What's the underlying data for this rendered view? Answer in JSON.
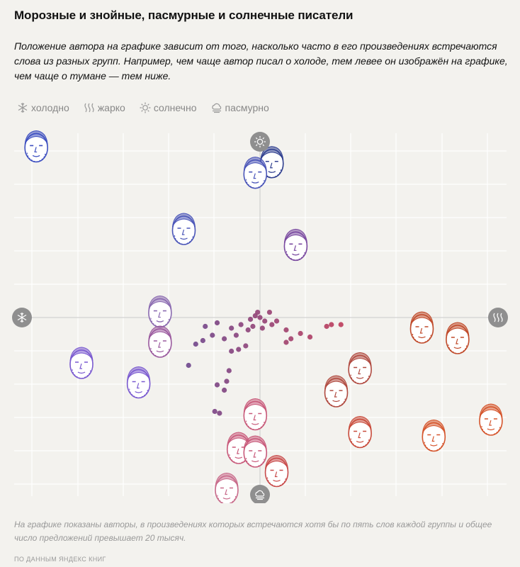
{
  "header": {
    "title": "Морозные и знойные, пасмурные и солнечные писатели",
    "subtitle": "Положение автора на графике зависит от того, насколько часто в его произведениях встречаются слова из разных групп. Например, чем чаще автор писал о холоде, тем левее он изображён на графике, чем чаще о тумане — тем ниже."
  },
  "legend": [
    {
      "label": "холодно",
      "icon": "snowflake-icon"
    },
    {
      "label": "жарко",
      "icon": "heat-waves-icon"
    },
    {
      "label": "солнечно",
      "icon": "sun-icon"
    },
    {
      "label": "пасмурно",
      "icon": "cloud-icon"
    }
  ],
  "footer": {
    "note": "На графике показаны авторы, в произведениях которых встречаются хотя бы по пять слов каждой группы и общее число предложений превышает 20 тысяч.",
    "source": "ПО ДАННЫМ ЯНДЕКС КНИГ"
  },
  "colors": {
    "cold": "#4a5ec4",
    "warm": "#d5552c",
    "mid": "#8a4a9a",
    "grid": "#ffffff",
    "axis_badge": "#8f8f8f"
  },
  "chart_data": {
    "type": "scatter",
    "title": "Морозные и знойные, пасмурные и солнечные писатели",
    "x_axis": {
      "negative": "холодно",
      "positive": "жарко",
      "range": [
        -1,
        1
      ]
    },
    "y_axis": {
      "negative": "пасмурно",
      "positive": "солнечно",
      "range": [
        -1,
        1
      ]
    },
    "grid": true,
    "authors": [
      {
        "x": -0.94,
        "y": 0.97,
        "color": "#3d4fc0"
      },
      {
        "x": 0.05,
        "y": 0.88,
        "color": "#2f3f8f"
      },
      {
        "x": -0.02,
        "y": 0.82,
        "color": "#4a55b8"
      },
      {
        "x": -0.32,
        "y": 0.5,
        "color": "#4a55b8"
      },
      {
        "x": 0.15,
        "y": 0.41,
        "color": "#7a4aa0"
      },
      {
        "x": -0.42,
        "y": 0.03,
        "color": "#8a6ab0"
      },
      {
        "x": -0.42,
        "y": -0.14,
        "color": "#9a5a9e"
      },
      {
        "x": -0.75,
        "y": -0.26,
        "color": "#7a5ad0"
      },
      {
        "x": -0.51,
        "y": -0.37,
        "color": "#7a5ad0"
      },
      {
        "x": 0.68,
        "y": -0.06,
        "color": "#c04a2a"
      },
      {
        "x": 0.83,
        "y": -0.12,
        "color": "#c04a2a"
      },
      {
        "x": 0.42,
        "y": -0.29,
        "color": "#b04a40"
      },
      {
        "x": 0.32,
        "y": -0.42,
        "color": "#b04a40"
      },
      {
        "x": 0.97,
        "y": -0.58,
        "color": "#d5552c"
      },
      {
        "x": 0.73,
        "y": -0.67,
        "color": "#d5552c"
      },
      {
        "x": 0.42,
        "y": -0.65,
        "color": "#c84a3a"
      },
      {
        "x": -0.02,
        "y": -0.55,
        "color": "#c85a7a"
      },
      {
        "x": -0.09,
        "y": -0.74,
        "color": "#c85a7a"
      },
      {
        "x": -0.02,
        "y": -0.76,
        "color": "#c85a7a"
      },
      {
        "x": 0.07,
        "y": -0.87,
        "color": "#c84a4a"
      },
      {
        "x": -0.14,
        "y": -0.97,
        "color": "#c86a8a"
      }
    ],
    "points": [
      {
        "x": -0.02,
        "y": 0.01
      },
      {
        "x": 0.0,
        "y": 0.0
      },
      {
        "x": -0.04,
        "y": -0.01
      },
      {
        "x": 0.02,
        "y": -0.02
      },
      {
        "x": -0.03,
        "y": -0.05
      },
      {
        "x": 0.01,
        "y": -0.06
      },
      {
        "x": -0.05,
        "y": -0.07
      },
      {
        "x": -0.08,
        "y": -0.04
      },
      {
        "x": -0.12,
        "y": -0.06
      },
      {
        "x": 0.04,
        "y": 0.03
      },
      {
        "x": -0.01,
        "y": 0.03
      },
      {
        "x": 0.05,
        "y": -0.04
      },
      {
        "x": 0.11,
        "y": -0.07
      },
      {
        "x": 0.17,
        "y": -0.09
      },
      {
        "x": 0.13,
        "y": -0.12
      },
      {
        "x": 0.21,
        "y": -0.11
      },
      {
        "x": 0.28,
        "y": -0.05
      },
      {
        "x": 0.3,
        "y": -0.04
      },
      {
        "x": 0.34,
        "y": -0.04
      },
      {
        "x": 0.11,
        "y": -0.14
      },
      {
        "x": -0.18,
        "y": -0.03
      },
      {
        "x": -0.23,
        "y": -0.05
      },
      {
        "x": -0.2,
        "y": -0.1
      },
      {
        "x": -0.24,
        "y": -0.13
      },
      {
        "x": -0.27,
        "y": -0.15
      },
      {
        "x": -0.15,
        "y": -0.12
      },
      {
        "x": -0.1,
        "y": -0.1
      },
      {
        "x": -0.06,
        "y": -0.16
      },
      {
        "x": -0.09,
        "y": -0.18
      },
      {
        "x": -0.12,
        "y": -0.19
      },
      {
        "x": -0.3,
        "y": -0.27
      },
      {
        "x": -0.13,
        "y": -0.3
      },
      {
        "x": -0.14,
        "y": -0.36
      },
      {
        "x": -0.18,
        "y": -0.38
      },
      {
        "x": -0.15,
        "y": -0.41
      },
      {
        "x": -0.19,
        "y": -0.53
      },
      {
        "x": -0.17,
        "y": -0.54
      },
      {
        "x": 0.07,
        "y": -0.02
      }
    ]
  }
}
